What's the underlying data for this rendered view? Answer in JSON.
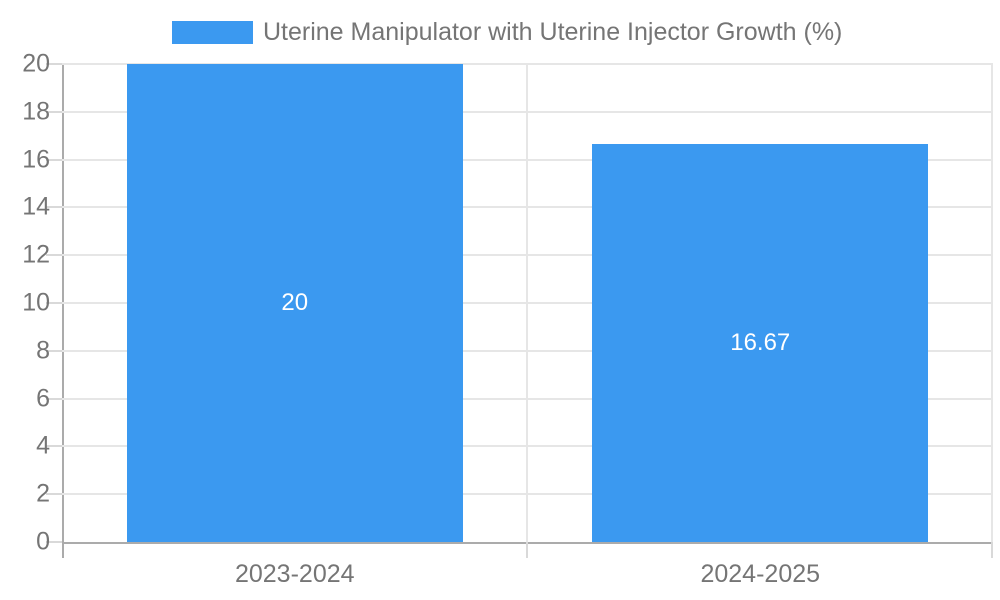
{
  "chart_data": {
    "type": "bar",
    "title": "Uterine Manipulator with Uterine Injector Growth (%)",
    "categories": [
      "2023-2024",
      "2024-2025"
    ],
    "series": [
      {
        "name": "Uterine Manipulator with Uterine Injector Growth (%)",
        "values": [
          20,
          16.67
        ]
      }
    ],
    "value_labels": [
      "20",
      "16.67"
    ],
    "xlabel": "",
    "ylabel": "",
    "ylim": [
      0,
      20
    ],
    "yticks": [
      0,
      2,
      4,
      6,
      8,
      10,
      12,
      14,
      16,
      18,
      20
    ],
    "grid": true,
    "legend_position": "top",
    "colors": {
      "bar": "#3b99f0",
      "grid": "#e6e6e6",
      "axis": "#ababab",
      "tick_mark": "#d9d9d9",
      "text": "#757575",
      "value_label": "#ffffff",
      "background": "#ffffff"
    }
  }
}
